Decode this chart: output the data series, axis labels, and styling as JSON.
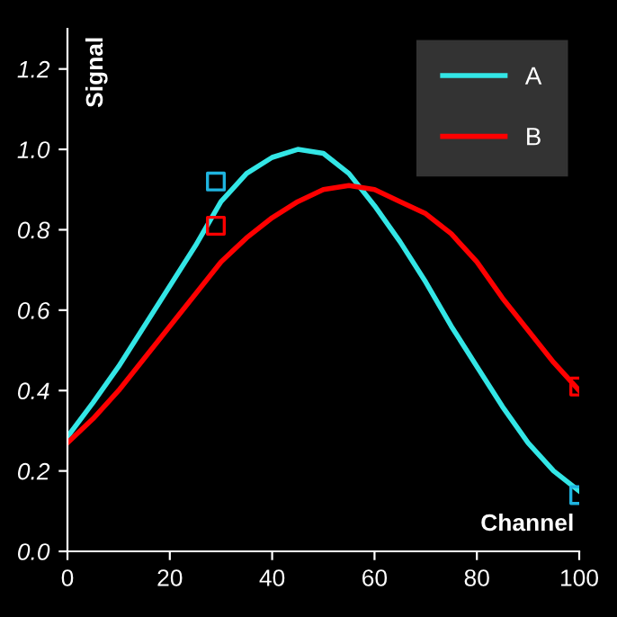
{
  "chart_data": {
    "type": "line",
    "xlabel": "Channel",
    "ylabel": "Signal",
    "xlim": [
      0,
      100
    ],
    "xticks": [
      0,
      20,
      40,
      60,
      80,
      100
    ],
    "ylim": [
      0,
      1.3
    ],
    "yticks": [
      {
        "value": 0,
        "label": "0.0"
      },
      0.2,
      0.4,
      0.6,
      0.8,
      {
        "value": 1.0,
        "label": "1.0"
      },
      1.2
    ],
    "grid": false,
    "legend": "top right",
    "marker": "none",
    "line_style": "solid",
    "series": [
      {
        "name": "A",
        "color": "#33e6e6",
        "x": [
          0,
          5,
          10,
          15,
          20,
          25,
          30,
          35,
          40,
          45,
          50,
          55,
          60,
          65,
          70,
          75,
          80,
          85,
          90,
          95,
          100
        ],
        "values": [
          0.285,
          0.37,
          0.46,
          0.56,
          0.66,
          0.76,
          0.87,
          0.94,
          0.98,
          1.0,
          0.99,
          0.94,
          0.86,
          0.77,
          0.67,
          0.56,
          0.46,
          0.36,
          0.27,
          0.2,
          0.15
        ]
      },
      {
        "name": "B",
        "color": "#ff0000",
        "x": [
          0,
          5,
          10,
          15,
          20,
          25,
          30,
          35,
          40,
          45,
          50,
          55,
          60,
          65,
          70,
          75,
          80,
          85,
          90,
          95,
          100
        ],
        "values": [
          0.27,
          0.33,
          0.4,
          0.48,
          0.56,
          0.64,
          0.72,
          0.78,
          0.83,
          0.87,
          0.9,
          0.91,
          0.9,
          0.87,
          0.84,
          0.79,
          0.72,
          0.63,
          0.55,
          0.47,
          0.4
        ]
      },
      {
        "type": "scatter",
        "marker": "square",
        "color": "#1fb4e0",
        "x": [
          29,
          100
        ],
        "values": [
          0.92,
          0.14
        ]
      },
      {
        "type": "scatter",
        "marker": "square",
        "color": "#ff0000",
        "x": [
          29,
          100
        ],
        "values": [
          0.81,
          0.41
        ]
      }
    ]
  }
}
